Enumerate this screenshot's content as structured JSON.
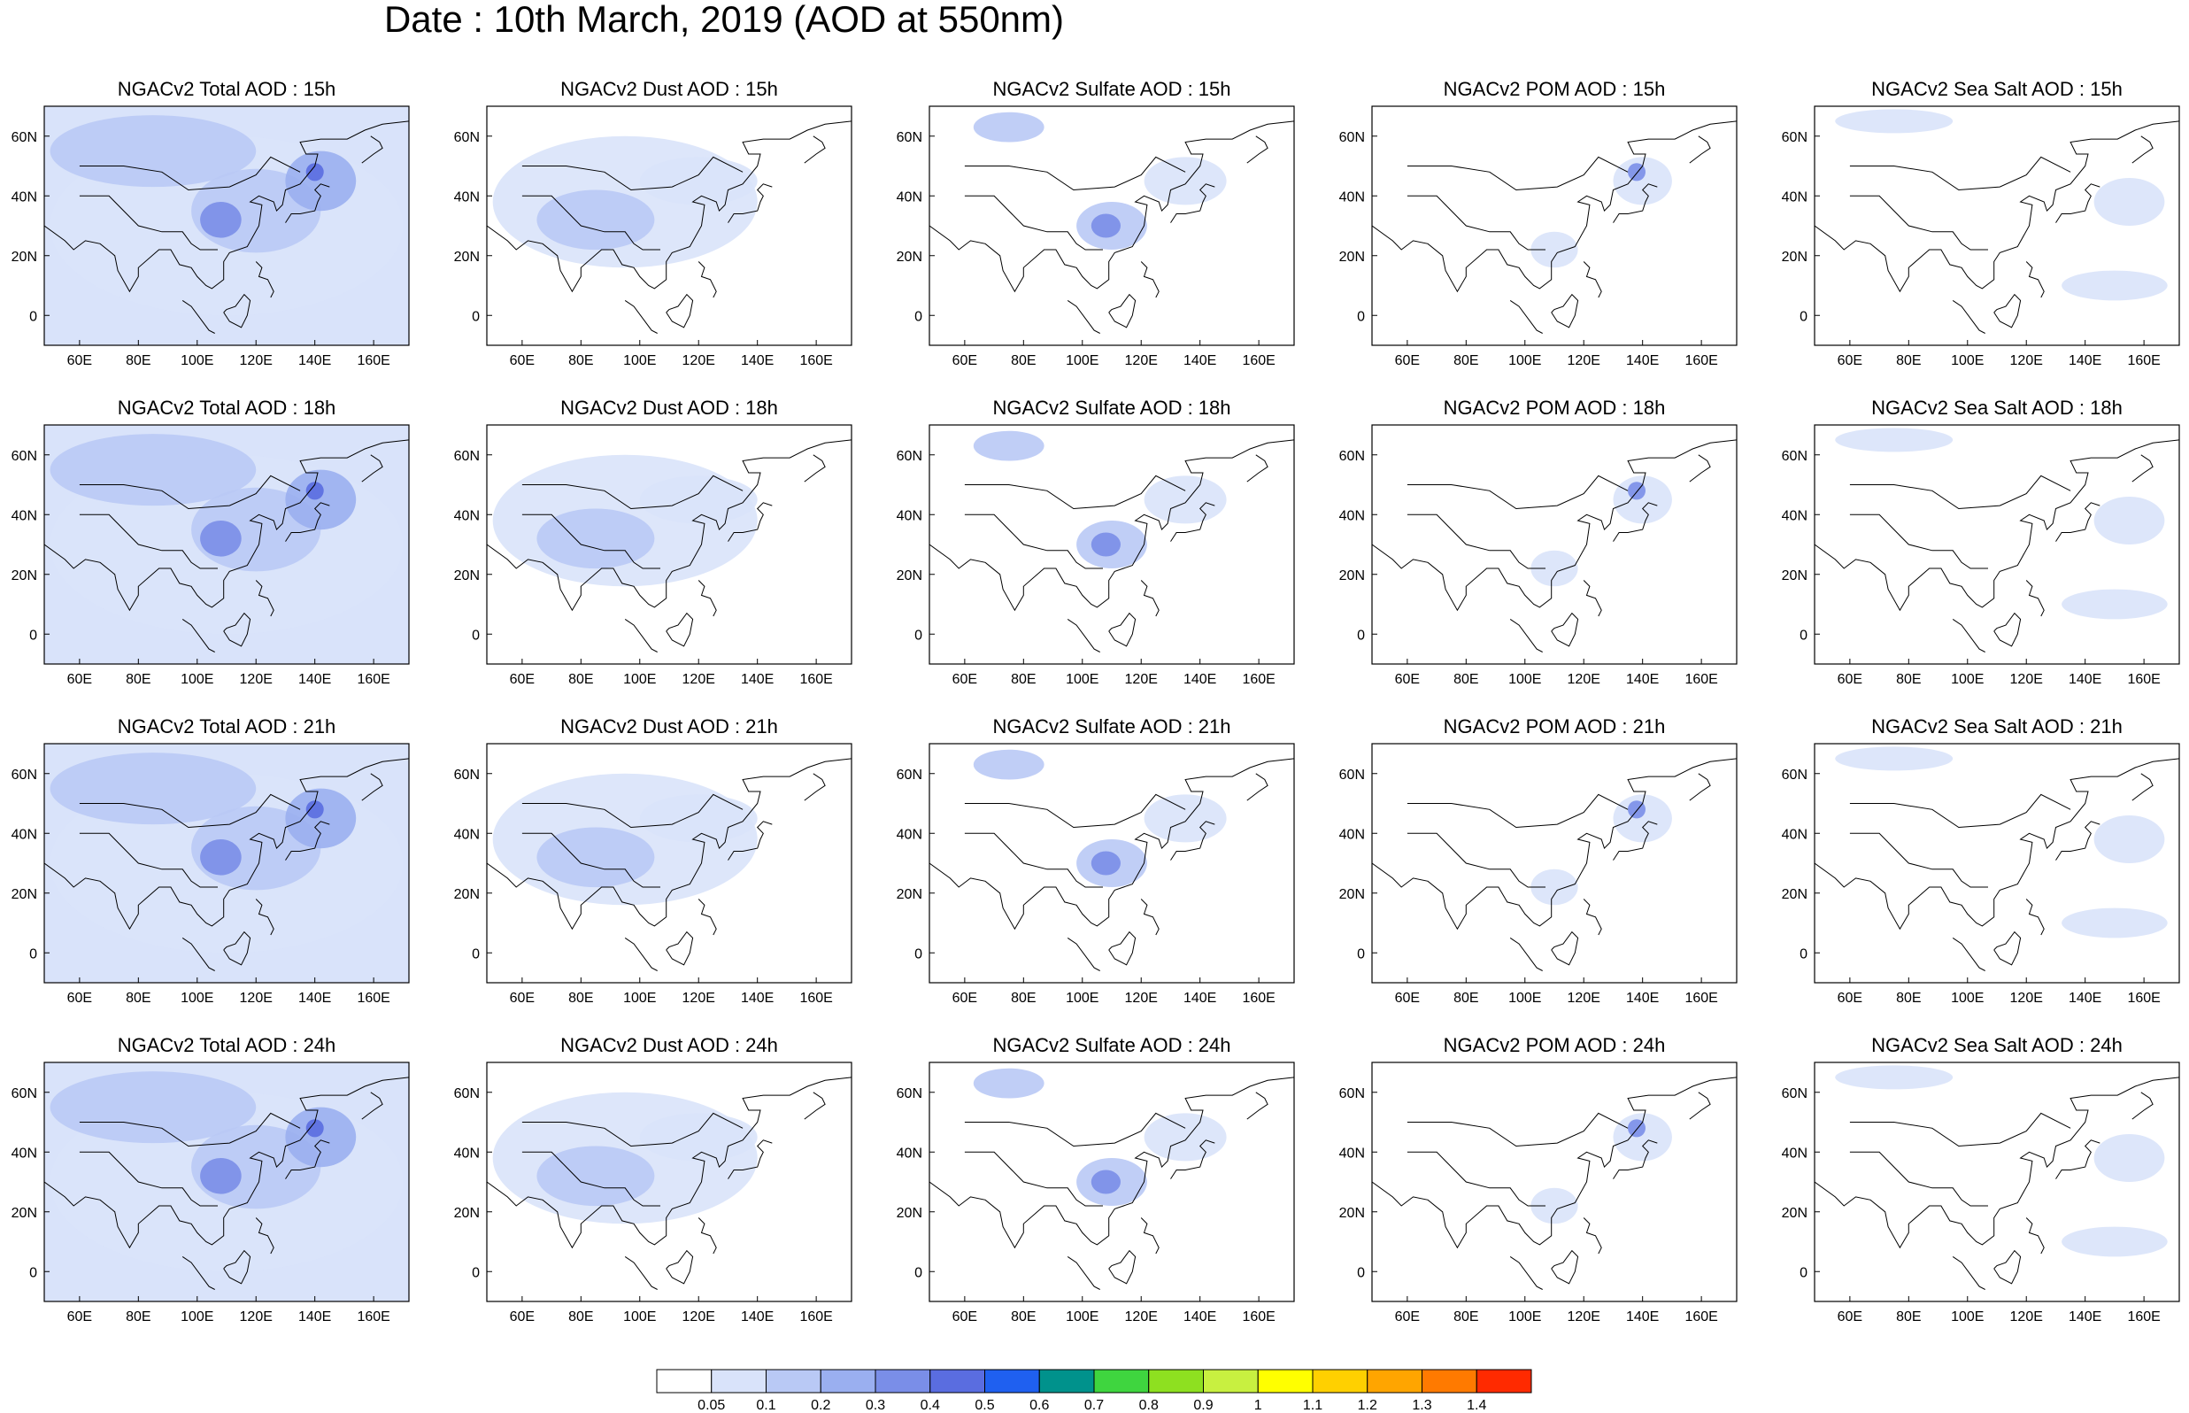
{
  "title": "Date : 10th March, 2019 (AOD at 550nm)",
  "map": {
    "lon_range": [
      48,
      172
    ],
    "lat_range": [
      -10,
      70
    ],
    "lon_ticks": [
      "60E",
      "80E",
      "100E",
      "120E",
      "140E",
      "160E"
    ],
    "lon_tick_values": [
      60,
      80,
      100,
      120,
      140,
      160
    ],
    "lat_ticks": [
      "0",
      "20N",
      "40N",
      "60N"
    ],
    "lat_tick_values": [
      0,
      20,
      40,
      60
    ]
  },
  "panels": [
    [
      "NGACv2 Total AOD : 15h",
      "NGACv2 Dust AOD : 15h",
      "NGACv2 Sulfate AOD : 15h",
      "NGACv2 POM AOD : 15h",
      "NGACv2 Sea Salt AOD : 15h"
    ],
    [
      "NGACv2 Total AOD : 18h",
      "NGACv2 Dust AOD : 18h",
      "NGACv2 Sulfate AOD : 18h",
      "NGACv2 POM AOD : 18h",
      "NGACv2 Sea Salt AOD : 18h"
    ],
    [
      "NGACv2 Total AOD : 21h",
      "NGACv2 Dust AOD : 21h",
      "NGACv2 Sulfate AOD : 21h",
      "NGACv2 POM AOD : 21h",
      "NGACv2 Sea Salt AOD : 21h"
    ],
    [
      "NGACv2 Total AOD : 24h",
      "NGACv2 Dust AOD : 24h",
      "NGACv2 Sulfate AOD : 24h",
      "NGACv2 POM AOD : 24h",
      "NGACv2 Sea Salt  AOD : 24h"
    ]
  ],
  "colorbar": {
    "labels": [
      "0.05",
      "0.1",
      "0.2",
      "0.3",
      "0.4",
      "0.5",
      "0.6",
      "0.7",
      "0.8",
      "0.9",
      "1",
      "1.1",
      "1.2",
      "1.3",
      "1.4"
    ],
    "colors": [
      "#ffffff",
      "#d9e3fa",
      "#b9c9f5",
      "#9aaff0",
      "#7a8ee8",
      "#5a6de0",
      "#1f60f0",
      "#00928c",
      "#3fd53f",
      "#8ee020",
      "#c8f040",
      "#ffff00",
      "#ffd000",
      "#ffa500",
      "#ff7a00",
      "#ff2a00"
    ]
  }
}
